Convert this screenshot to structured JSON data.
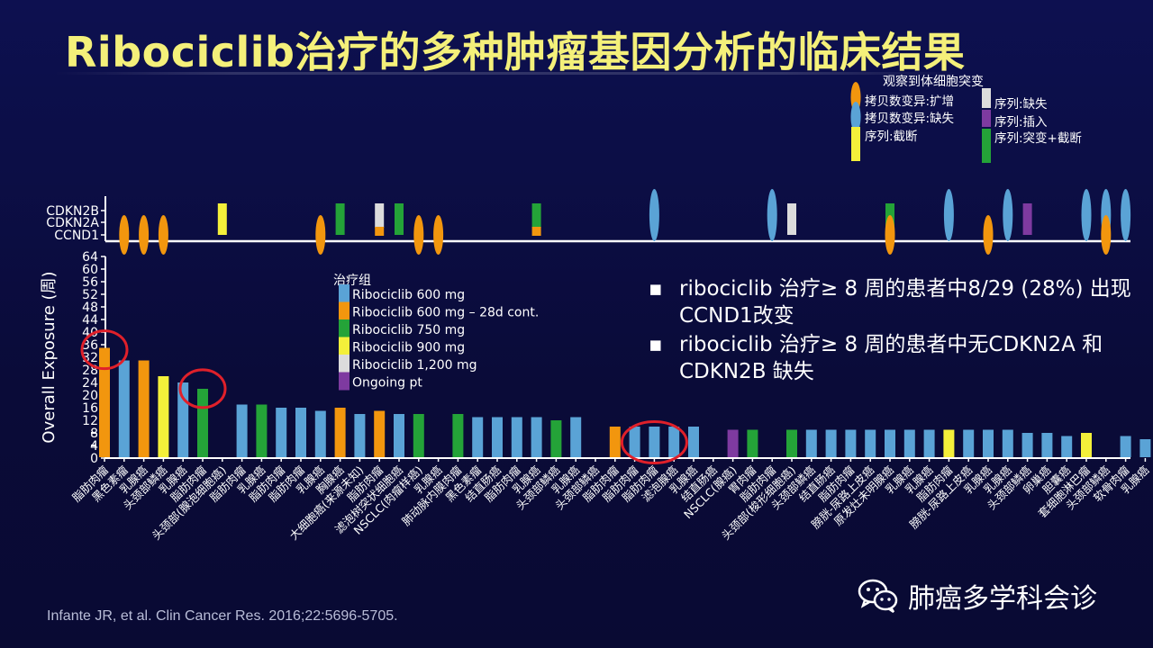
{
  "title": "Ribociclib治疗的多种肿瘤基因分析的临床结果",
  "reference": "Infante JR, et al. Clin Cancer Res. 2016;22:5696-5705.",
  "brand": {
    "icon": "wechat-icon",
    "name": "肺癌多学科会诊"
  },
  "bullets": [
    "ribociclib 治疗≥ 8 周的患者中8/29 (28%) 出现CCND1改变",
    "ribociclib 治疗≥ 8 周的患者中无CDKN2A 和CDKN2B 缺失"
  ],
  "colors": {
    "blue": "#5aa3d6",
    "orange": "#f2960e",
    "green": "#24a338",
    "yellow": "#f4f03a",
    "light": "#dcdcdc",
    "purple": "#7e3aa0",
    "circle": "#e0202a",
    "title": "#f4f07a"
  },
  "chart_data": [
    {
      "type": "bar",
      "ylabel": "Overall Exposure (周)",
      "ylim": [
        0,
        64
      ],
      "yticks": [
        0,
        4,
        8,
        12,
        16,
        20,
        24,
        28,
        32,
        36,
        40,
        44,
        48,
        52,
        56,
        60,
        64
      ],
      "legend_title": "治疗组",
      "legend": [
        {
          "label": "Ribociclib 600 mg",
          "color": "blue"
        },
        {
          "label": "Ribociclib 600 mg – 28d cont.",
          "color": "orange"
        },
        {
          "label": "Ribociclib 750 mg",
          "color": "green"
        },
        {
          "label": "Ribociclib 900 mg",
          "color": "yellow"
        },
        {
          "label": "Ribociclib 1,200 mg",
          "color": "light"
        },
        {
          "label": "Ongoing pt",
          "color": "purple"
        }
      ],
      "categories": [
        "脂肪肉瘤",
        "黑色素瘤",
        "乳腺癌",
        "头颈部鳞癌",
        "乳腺癌",
        "脂肪肉瘤",
        "头颈部(腺泡细胞癌)",
        "脂肪肉瘤",
        "乳腺癌",
        "脂肪肉瘤",
        "脂肪肉瘤",
        "乳腺癌",
        "胸腺癌",
        "大细胞癌(来源未知)",
        "脂肪肉瘤",
        "滤泡树突状细胞癌",
        "NSCLC(肉瘤样癌)",
        "乳腺癌",
        "肺动脉内膜肉瘤",
        "黑色素瘤",
        "结直肠癌",
        "脂肪肉瘤",
        "乳腺癌",
        "头颈部鳞癌",
        "乳腺癌",
        "头颈部鳞癌",
        "脂肪肉瘤",
        "脂肪肉瘤",
        "脂肪肉瘤",
        "滤泡腺癌",
        "乳腺癌",
        "结直肠癌",
        "NSCLC(腺癌)",
        "胃肉瘤",
        "脂肪肉瘤",
        "头颈部(梭形细胞癌)",
        "头颈部鳞癌",
        "结直肠癌",
        "脂肪肉瘤",
        "膀胱-尿路上皮癌",
        "原发灶未明腺癌",
        "乳腺癌",
        "乳腺癌",
        "脂肪肉瘤",
        "膀胱-尿路上皮癌",
        "乳腺癌",
        "乳腺癌",
        "头颈部鳞癌",
        "卵巢癌",
        "胆囊癌",
        "套细胞淋巴瘤",
        "头颈部鳞癌",
        "软骨肉瘤",
        "乳腺癌"
      ],
      "series": [
        {
          "name": "Ribociclib 600 mg",
          "values": [
            null,
            31,
            null,
            null,
            24,
            null,
            null,
            17,
            null,
            16,
            16,
            15,
            null,
            14,
            null,
            14,
            null,
            null,
            null,
            13,
            13,
            13,
            13,
            null,
            13,
            null,
            null,
            10,
            10,
            10,
            10,
            null,
            null,
            null,
            null,
            null,
            9,
            9,
            9,
            9,
            9,
            9,
            9,
            null,
            9,
            9,
            9,
            8,
            8,
            7,
            null,
            null,
            7,
            6
          ]
        },
        {
          "name": "Ribociclib 600 mg – 28d cont.",
          "values": [
            35,
            null,
            31,
            null,
            null,
            null,
            null,
            null,
            null,
            null,
            null,
            null,
            16,
            null,
            15,
            null,
            null,
            null,
            null,
            null,
            null,
            null,
            null,
            null,
            null,
            null,
            10,
            null,
            null,
            null,
            null,
            null,
            null,
            null,
            null,
            null,
            null,
            null,
            null,
            null,
            null,
            null,
            null,
            null,
            null,
            null,
            null,
            null,
            null,
            null,
            null,
            null,
            null,
            null
          ]
        },
        {
          "name": "Ribociclib 750 mg",
          "values": [
            null,
            null,
            null,
            null,
            null,
            22,
            null,
            null,
            17,
            null,
            null,
            null,
            null,
            null,
            null,
            null,
            14,
            null,
            14,
            null,
            null,
            null,
            null,
            12,
            null,
            null,
            null,
            null,
            null,
            null,
            null,
            null,
            null,
            9,
            null,
            9,
            null,
            null,
            null,
            null,
            null,
            null,
            null,
            null,
            null,
            null,
            null,
            null,
            null,
            null,
            null,
            null,
            null,
            null
          ]
        },
        {
          "name": "Ribociclib 900 mg",
          "values": [
            null,
            null,
            null,
            26,
            null,
            null,
            null,
            null,
            null,
            null,
            null,
            null,
            null,
            null,
            null,
            null,
            null,
            null,
            null,
            null,
            null,
            null,
            null,
            null,
            null,
            null,
            null,
            null,
            null,
            null,
            null,
            null,
            null,
            null,
            null,
            null,
            null,
            null,
            null,
            null,
            null,
            null,
            null,
            9,
            null,
            null,
            null,
            null,
            null,
            null,
            8,
            null,
            null,
            null
          ]
        },
        {
          "name": "Ongoing pt",
          "values": [
            null,
            null,
            null,
            null,
            null,
            null,
            null,
            null,
            null,
            null,
            null,
            null,
            null,
            null,
            null,
            null,
            null,
            null,
            null,
            null,
            null,
            null,
            null,
            null,
            null,
            null,
            null,
            null,
            null,
            null,
            null,
            null,
            9,
            null,
            null,
            null,
            null,
            null,
            null,
            null,
            null,
            null,
            null,
            null,
            null,
            null,
            null,
            null,
            null,
            null,
            null,
            null,
            null,
            null
          ]
        }
      ],
      "ongoing_marks": [
        1,
        3
      ],
      "highlighted_patients": [
        0,
        5,
        28
      ]
    },
    {
      "type": "scatter",
      "title": "观察到体细胞突变",
      "rows": [
        "CDKN2B",
        "CDKN2A",
        "CCND1"
      ],
      "legend": [
        {
          "label": "拷贝数变异:扩增",
          "color": "orange",
          "shape": "ellipse"
        },
        {
          "label": "拷贝数变异:缺失",
          "color": "blue",
          "shape": "ellipse"
        },
        {
          "label": "序列:截断",
          "color": "yellow",
          "shape": "rect"
        },
        {
          "label": "序列:缺失",
          "color": "light",
          "shape": "rect"
        },
        {
          "label": "序列:插入",
          "color": "purple",
          "shape": "rect"
        },
        {
          "label": "序列:突变+截断",
          "color": "green",
          "shape": "rect"
        }
      ],
      "markers": [
        {
          "patient": 1,
          "kind": "ellipse",
          "color": "orange",
          "span": [
            "CCND1",
            "CCND1"
          ]
        },
        {
          "patient": 2,
          "kind": "ellipse",
          "color": "orange",
          "span": [
            "CCND1",
            "CCND1"
          ]
        },
        {
          "patient": 3,
          "kind": "ellipse",
          "color": "orange",
          "span": [
            "CCND1",
            "CCND1"
          ]
        },
        {
          "patient": 6,
          "kind": "rect",
          "color": "yellow",
          "span": [
            "CCND1",
            "CDKN2B"
          ]
        },
        {
          "patient": 11,
          "kind": "ellipse",
          "color": "orange",
          "span": [
            "CCND1",
            "CCND1"
          ]
        },
        {
          "patient": 12,
          "kind": "rect",
          "color": "green",
          "span": [
            "CCND1",
            "CDKN2B"
          ]
        },
        {
          "patient": 14,
          "kind": "rect",
          "color": "light",
          "span": [
            "CDKN2A",
            "CDKN2B"
          ]
        },
        {
          "patient": 14,
          "kind": "rect",
          "color": "orange",
          "span": [
            "CCND1",
            "CCND1"
          ]
        },
        {
          "patient": 15,
          "kind": "rect",
          "color": "green",
          "span": [
            "CCND1",
            "CDKN2B"
          ]
        },
        {
          "patient": 16,
          "kind": "ellipse",
          "color": "orange",
          "span": [
            "CCND1",
            "CCND1"
          ]
        },
        {
          "patient": 17,
          "kind": "ellipse",
          "color": "orange",
          "span": [
            "CCND1",
            "CCND1"
          ]
        },
        {
          "patient": 22,
          "kind": "rect",
          "color": "green",
          "span": [
            "CDKN2A",
            "CDKN2B"
          ]
        },
        {
          "patient": 22,
          "kind": "rect",
          "color": "orange",
          "span": [
            "CCND1",
            "CCND1"
          ]
        },
        {
          "patient": 28,
          "kind": "ellipse",
          "color": "blue",
          "span": [
            "CCND1",
            "CDKN2B"
          ]
        },
        {
          "patient": 34,
          "kind": "ellipse",
          "color": "blue",
          "span": [
            "CCND1",
            "CDKN2B"
          ]
        },
        {
          "patient": 35,
          "kind": "rect",
          "color": "light",
          "span": [
            "CCND1",
            "CDKN2B"
          ]
        },
        {
          "patient": 40,
          "kind": "rect",
          "color": "green",
          "span": [
            "CDKN2A",
            "CDKN2B"
          ]
        },
        {
          "patient": 40,
          "kind": "ellipse",
          "color": "orange",
          "span": [
            "CCND1",
            "CCND1"
          ]
        },
        {
          "patient": 43,
          "kind": "ellipse",
          "color": "blue",
          "span": [
            "CCND1",
            "CDKN2B"
          ]
        },
        {
          "patient": 45,
          "kind": "ellipse",
          "color": "orange",
          "span": [
            "CCND1",
            "CCND1"
          ]
        },
        {
          "patient": 46,
          "kind": "ellipse",
          "color": "blue",
          "span": [
            "CCND1",
            "CDKN2B"
          ]
        },
        {
          "patient": 47,
          "kind": "rect",
          "color": "purple",
          "span": [
            "CCND1",
            "CDKN2B"
          ]
        },
        {
          "patient": 50,
          "kind": "ellipse",
          "color": "blue",
          "span": [
            "CCND1",
            "CDKN2B"
          ]
        },
        {
          "patient": 51,
          "kind": "ellipse",
          "color": "blue",
          "span": [
            "CCND1",
            "CDKN2B"
          ]
        },
        {
          "patient": 51,
          "kind": "ellipse",
          "color": "orange",
          "span": [
            "CCND1",
            "CCND1"
          ]
        },
        {
          "patient": 52,
          "kind": "ellipse",
          "color": "blue",
          "span": [
            "CCND1",
            "CDKN2B"
          ]
        }
      ]
    }
  ]
}
